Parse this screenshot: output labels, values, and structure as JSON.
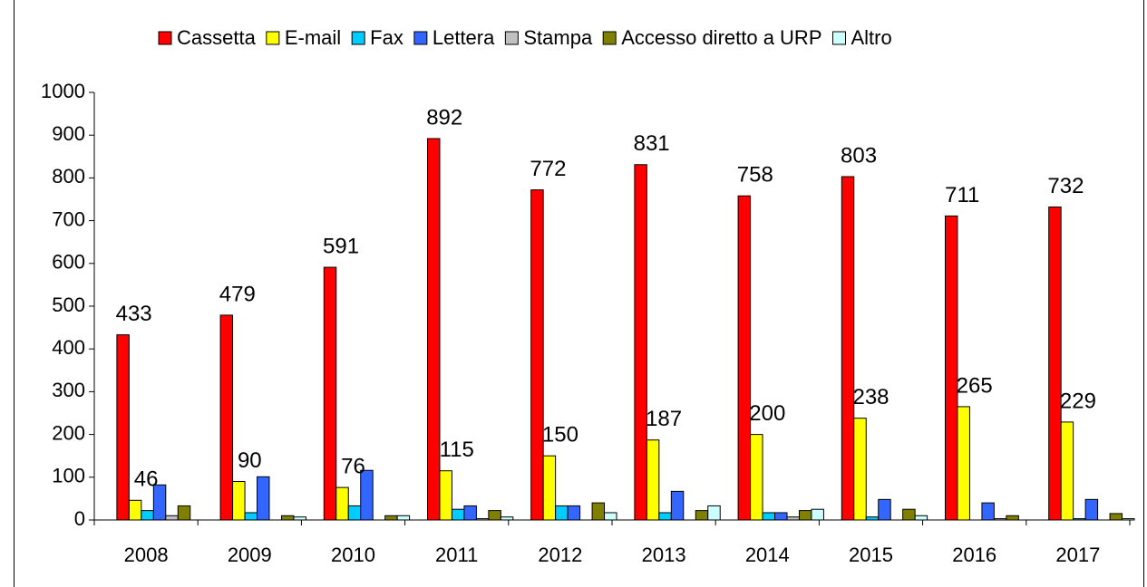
{
  "chart_data": {
    "type": "bar",
    "categories": [
      "2008",
      "2009",
      "2010",
      "2011",
      "2012",
      "2013",
      "2014",
      "2015",
      "2016",
      "2017"
    ],
    "series": [
      {
        "name": "Cassetta",
        "color": "#ff0000",
        "show_labels": true,
        "values": [
          433,
          479,
          591,
          892,
          772,
          831,
          758,
          803,
          711,
          732
        ]
      },
      {
        "name": "E-mail",
        "color": "#ffff00",
        "show_labels": true,
        "values": [
          46,
          90,
          76,
          115,
          150,
          187,
          200,
          238,
          265,
          229
        ]
      },
      {
        "name": "Fax",
        "color": "#00ccff",
        "show_labels": false,
        "values": [
          22,
          17,
          33,
          25,
          33,
          17,
          17,
          7,
          0,
          3
        ]
      },
      {
        "name": "Lettera",
        "color": "#3366ff",
        "show_labels": false,
        "values": [
          82,
          101,
          116,
          33,
          33,
          67,
          17,
          48,
          40,
          48
        ]
      },
      {
        "name": "Stampa",
        "color": "#c0c0c0",
        "show_labels": false,
        "values": [
          10,
          0,
          0,
          3,
          0,
          0,
          7,
          0,
          3,
          0
        ]
      },
      {
        "name": "Accesso diretto a URP",
        "color": "#808000",
        "show_labels": false,
        "values": [
          33,
          10,
          10,
          22,
          40,
          22,
          22,
          25,
          10,
          15
        ]
      },
      {
        "name": "Altro",
        "color": "#ccffff",
        "show_labels": false,
        "values": [
          0,
          7,
          10,
          7,
          17,
          33,
          25,
          10,
          0,
          3
        ]
      }
    ],
    "ylim": [
      0,
      1000
    ],
    "yticks": [
      0,
      100,
      200,
      300,
      400,
      500,
      600,
      700,
      800,
      900,
      1000
    ],
    "grid": false,
    "legend": "top"
  }
}
